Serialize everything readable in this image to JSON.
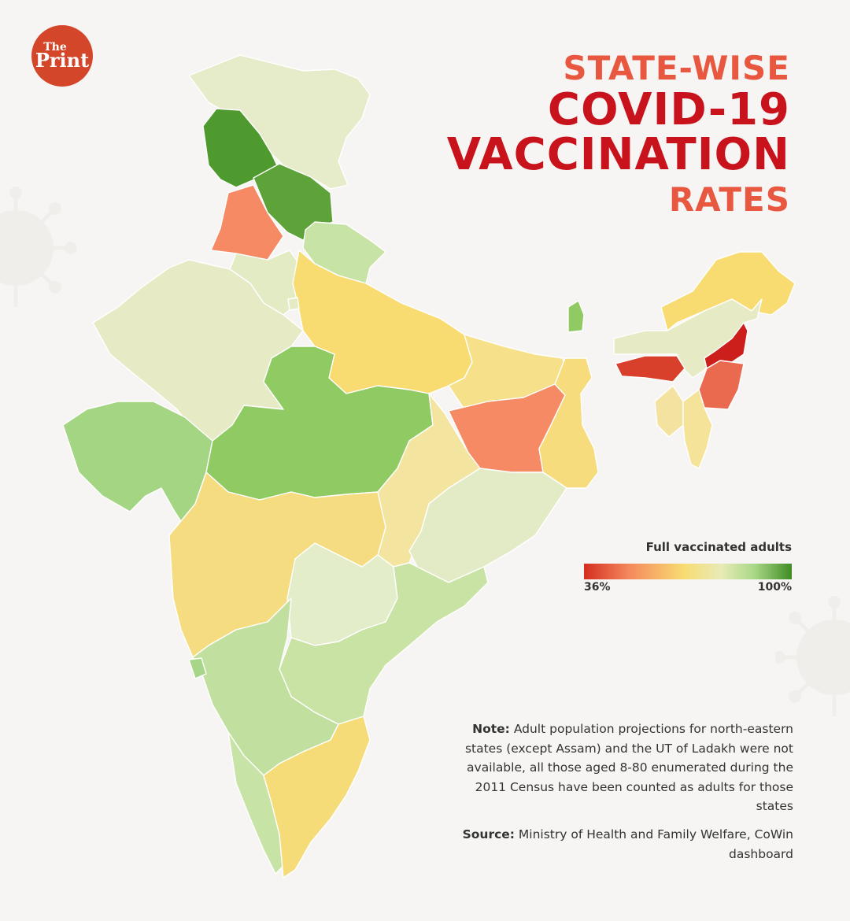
{
  "brand": {
    "small": "The",
    "large": "Print"
  },
  "title": {
    "line1": "STATE-WISE",
    "line2": "COVID-19",
    "line3": "VACCINATION",
    "line4": "RATES"
  },
  "legend": {
    "title": "Full vaccinated adults",
    "min_label": "36%",
    "max_label": "100%"
  },
  "note": {
    "label": "Note:",
    "text": "Adult population projections for north-eastern states (except Assam) and the UT of Ladakh were not available, all those aged 8-80 enumerated during the 2011 Census have been counted as adults for those states"
  },
  "source": {
    "label": "Source:",
    "text": "Ministry of Health and Family Welfare, CoWin dashboard"
  },
  "colors": {
    "title_accent": "#e8573f",
    "title_main": "#c9131c",
    "logo": "#d4462a",
    "scale_low": "#d42e21",
    "scale_mid": "#f8dc72",
    "scale_high": "#3f8c24"
  },
  "regions": [
    {
      "id": "ladakh",
      "color": "#e6ebc9"
    },
    {
      "id": "jammu-kashmir",
      "color": "#4f9a2f"
    },
    {
      "id": "himachal-pradesh",
      "color": "#5ea33a"
    },
    {
      "id": "punjab",
      "color": "#f58a64"
    },
    {
      "id": "uttarakhand",
      "color": "#c7e3a5"
    },
    {
      "id": "haryana",
      "color": "#e3ebc4"
    },
    {
      "id": "rajasthan",
      "color": "#e6ebc5"
    },
    {
      "id": "uttar-pradesh",
      "color": "#f8dc72"
    },
    {
      "id": "gujarat",
      "color": "#a4d582"
    },
    {
      "id": "madhya-pradesh",
      "color": "#8fca62"
    },
    {
      "id": "bihar",
      "color": "#f7e08a"
    },
    {
      "id": "jharkhand",
      "color": "#f58a64"
    },
    {
      "id": "west-bengal",
      "color": "#f6dc7c"
    },
    {
      "id": "chhattisgarh",
      "color": "#f3e4a0"
    },
    {
      "id": "odisha",
      "color": "#e3ebc6"
    },
    {
      "id": "maharashtra",
      "color": "#f6dc80"
    },
    {
      "id": "telangana",
      "color": "#e4edc9"
    },
    {
      "id": "andhra-pradesh",
      "color": "#c9e3a4"
    },
    {
      "id": "karnataka",
      "color": "#c1df9e"
    },
    {
      "id": "goa",
      "color": "#a7d688"
    },
    {
      "id": "kerala",
      "color": "#c8e3a6"
    },
    {
      "id": "tamil-nadu",
      "color": "#f6dc78"
    },
    {
      "id": "sikkim",
      "color": "#8fca62"
    },
    {
      "id": "arunachal-pradesh",
      "color": "#f8dc72"
    },
    {
      "id": "assam",
      "color": "#e6ebc5"
    },
    {
      "id": "meghalaya",
      "color": "#d8402c"
    },
    {
      "id": "nagaland",
      "color": "#cc1f1b"
    },
    {
      "id": "manipur",
      "color": "#e96a4f"
    },
    {
      "id": "tripura",
      "color": "#f4e3a0"
    },
    {
      "id": "mizoram",
      "color": "#f6e39a"
    },
    {
      "id": "delhi",
      "color": "#e6ebc5"
    }
  ]
}
